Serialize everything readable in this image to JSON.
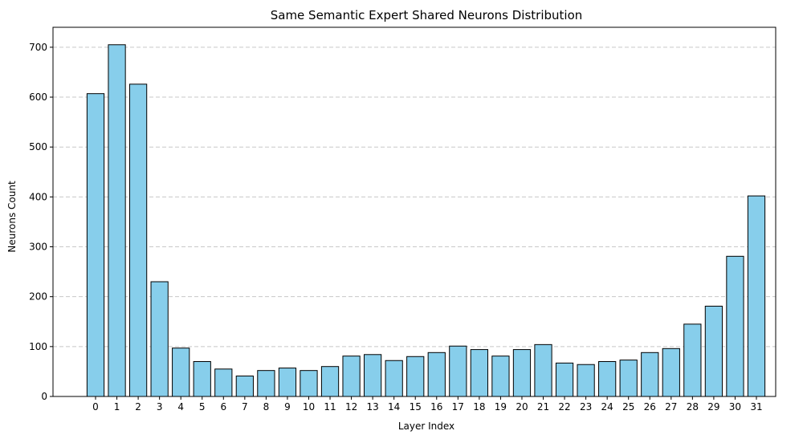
{
  "chart_data": {
    "type": "bar",
    "title": "Same Semantic Expert Shared Neurons Distribution",
    "xlabel": "Layer Index",
    "ylabel": "Neurons Count",
    "ylim": [
      0,
      740
    ],
    "yticks": [
      0,
      100,
      200,
      300,
      400,
      500,
      600,
      700
    ],
    "grid": "y-dashed",
    "categories": [
      "0",
      "1",
      "2",
      "3",
      "4",
      "5",
      "6",
      "7",
      "8",
      "9",
      "10",
      "11",
      "12",
      "13",
      "14",
      "15",
      "16",
      "17",
      "18",
      "19",
      "20",
      "21",
      "22",
      "23",
      "24",
      "25",
      "26",
      "27",
      "28",
      "29",
      "30",
      "31"
    ],
    "values": [
      607,
      705,
      626,
      230,
      97,
      70,
      55,
      41,
      52,
      57,
      52,
      60,
      81,
      84,
      72,
      80,
      88,
      101,
      94,
      81,
      94,
      104,
      67,
      64,
      70,
      73,
      88,
      96,
      145,
      181,
      281,
      402
    ],
    "bar_color": "#87CEEB",
    "edge_color": "#000000"
  }
}
